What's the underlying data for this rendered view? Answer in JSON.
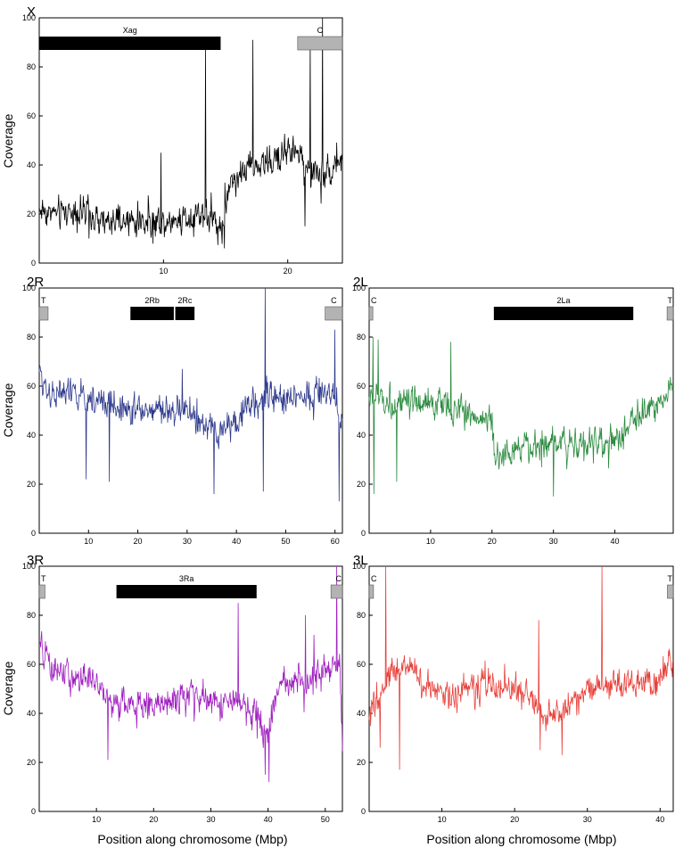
{
  "figure": {
    "y_axis_label": "Coverage",
    "x_axis_label": "Position along chromosome (Mbp)"
  },
  "chart_data": [
    {
      "id": "X",
      "panel_label": "X",
      "type": "line",
      "color": "#000000",
      "xlim": [
        0,
        24.4
      ],
      "ylim": [
        0,
        100
      ],
      "xticks": [
        10,
        20
      ],
      "yticks": [
        0,
        20,
        40,
        60,
        80,
        100
      ],
      "regions": [
        {
          "label": "Xag",
          "start": 0.0,
          "end": 14.6,
          "style": "inversion"
        },
        {
          "label": "C",
          "start": 20.8,
          "end": 24.4,
          "style": "centromere"
        }
      ],
      "spikes": [
        [
          9.8,
          45
        ],
        [
          13.4,
          88
        ],
        [
          17.2,
          91
        ],
        [
          21.8,
          90
        ],
        [
          22.8,
          100
        ]
      ],
      "dips": [
        [
          4.0,
          10
        ],
        [
          14.9,
          6
        ],
        [
          21.4,
          15
        ]
      ],
      "anchors": [
        [
          0.0,
          22
        ],
        [
          1.5,
          20
        ],
        [
          3.0,
          22
        ],
        [
          5.0,
          16
        ],
        [
          8.0,
          17
        ],
        [
          10.0,
          17
        ],
        [
          12.0,
          19
        ],
        [
          13.0,
          21
        ],
        [
          14.0,
          18
        ],
        [
          14.7,
          14
        ],
        [
          15.3,
          33
        ],
        [
          16.0,
          36
        ],
        [
          17.0,
          39
        ],
        [
          18.0,
          40
        ],
        [
          19.0,
          42
        ],
        [
          20.0,
          47
        ],
        [
          20.8,
          45
        ],
        [
          21.5,
          38
        ],
        [
          22.5,
          36
        ],
        [
          23.5,
          38
        ],
        [
          24.4,
          44
        ]
      ],
      "noise": 4.5
    },
    {
      "id": "2R",
      "panel_label": "2R",
      "type": "line",
      "color": "#2e3a8c",
      "xlim": [
        0,
        61.5
      ],
      "ylim": [
        0,
        100
      ],
      "xticks": [
        10,
        20,
        30,
        40,
        50,
        60
      ],
      "yticks": [
        0,
        20,
        40,
        60,
        80,
        100
      ],
      "regions": [
        {
          "label": "T",
          "start": 0.0,
          "end": 1.8,
          "style": "centromere"
        },
        {
          "label": "2Rb",
          "start": 18.5,
          "end": 27.3,
          "style": "inversion"
        },
        {
          "label": "2Rc",
          "start": 27.6,
          "end": 31.5,
          "style": "inversion"
        },
        {
          "label": "C",
          "start": 58.0,
          "end": 61.5,
          "style": "centromere"
        }
      ],
      "spikes": [
        [
          45.8,
          100
        ],
        [
          60.0,
          83
        ],
        [
          29.0,
          67
        ]
      ],
      "dips": [
        [
          9.5,
          22
        ],
        [
          14.2,
          21
        ],
        [
          35.5,
          16
        ],
        [
          45.5,
          17
        ],
        [
          60.8,
          13
        ]
      ],
      "anchors": [
        [
          0.0,
          65
        ],
        [
          2.0,
          58
        ],
        [
          10.0,
          55
        ],
        [
          20.0,
          50
        ],
        [
          30.0,
          50
        ],
        [
          33.0,
          44
        ],
        [
          36.0,
          40
        ],
        [
          40.0,
          47
        ],
        [
          45.0,
          55
        ],
        [
          50.0,
          55
        ],
        [
          55.0,
          57
        ],
        [
          59.0,
          58
        ],
        [
          61.5,
          45
        ]
      ],
      "noise": 4.5
    },
    {
      "id": "2L",
      "panel_label": "2L",
      "type": "line",
      "color": "#2a8a3e",
      "xlim": [
        0,
        49.5
      ],
      "ylim": [
        0,
        100
      ],
      "xticks": [
        10,
        20,
        30,
        40
      ],
      "yticks": [
        0,
        20,
        40,
        60,
        80,
        100
      ],
      "regions": [
        {
          "label": "C",
          "start": 0.0,
          "end": 0.6,
          "style": "centromere"
        },
        {
          "label": "2La",
          "start": 20.3,
          "end": 43.0,
          "style": "inversion"
        },
        {
          "label": "T",
          "start": 48.5,
          "end": 49.5,
          "style": "centromere"
        }
      ],
      "spikes": [
        [
          0.6,
          80
        ],
        [
          13.3,
          78
        ],
        [
          1.5,
          79
        ]
      ],
      "dips": [
        [
          0.8,
          16
        ],
        [
          4.5,
          21
        ],
        [
          30.0,
          15
        ]
      ],
      "anchors": [
        [
          0.0,
          55
        ],
        [
          2.0,
          55
        ],
        [
          5.0,
          52
        ],
        [
          10.0,
          53
        ],
        [
          15.0,
          50
        ],
        [
          20.0,
          46
        ],
        [
          20.4,
          30
        ],
        [
          25.0,
          35
        ],
        [
          30.0,
          38
        ],
        [
          35.0,
          37
        ],
        [
          40.0,
          36
        ],
        [
          43.0,
          46
        ],
        [
          47.0,
          54
        ],
        [
          49.5,
          60
        ]
      ],
      "noise": 4.5
    },
    {
      "id": "3R",
      "panel_label": "3R",
      "type": "line",
      "color": "#a020c0",
      "xlim": [
        0,
        53.0
      ],
      "ylim": [
        0,
        100
      ],
      "xticks": [
        10,
        20,
        30,
        40,
        50
      ],
      "yticks": [
        0,
        20,
        40,
        60,
        80,
        100
      ],
      "regions": [
        {
          "label": "T",
          "start": 0.0,
          "end": 1.0,
          "style": "centromere"
        },
        {
          "label": "3Ra",
          "start": 13.5,
          "end": 38.0,
          "style": "inversion"
        },
        {
          "label": "C",
          "start": 51.0,
          "end": 53.0,
          "style": "centromere"
        }
      ],
      "spikes": [
        [
          34.8,
          85
        ],
        [
          46.5,
          80
        ],
        [
          52.0,
          100
        ],
        [
          48.0,
          72
        ]
      ],
      "dips": [
        [
          12.0,
          21
        ],
        [
          40.2,
          12
        ],
        [
          39.5,
          15
        ]
      ],
      "anchors": [
        [
          0.0,
          68
        ],
        [
          2.0,
          58
        ],
        [
          10.0,
          52
        ],
        [
          13.0,
          44
        ],
        [
          20.0,
          43
        ],
        [
          25.0,
          47
        ],
        [
          30.0,
          45
        ],
        [
          35.0,
          44
        ],
        [
          38.0,
          38
        ],
        [
          40.0,
          30
        ],
        [
          42.0,
          52
        ],
        [
          50.0,
          55
        ],
        [
          52.5,
          60
        ],
        [
          53.0,
          30
        ]
      ],
      "noise": 4.5
    },
    {
      "id": "3L",
      "panel_label": "3L",
      "type": "line",
      "color": "#e8403a",
      "xlim": [
        0,
        41.8
      ],
      "ylim": [
        0,
        100
      ],
      "xticks": [
        10,
        20,
        30,
        40
      ],
      "yticks": [
        0,
        20,
        40,
        60,
        80,
        100
      ],
      "regions": [
        {
          "label": "C",
          "start": 0.0,
          "end": 0.6,
          "style": "centromere"
        },
        {
          "label": "T",
          "start": 41.0,
          "end": 41.8,
          "style": "centromere"
        }
      ],
      "spikes": [
        [
          2.3,
          100
        ],
        [
          32.0,
          100
        ],
        [
          23.3,
          78
        ]
      ],
      "dips": [
        [
          4.2,
          17
        ],
        [
          1.5,
          26
        ],
        [
          23.5,
          25
        ],
        [
          26.5,
          23
        ]
      ],
      "anchors": [
        [
          0.0,
          40
        ],
        [
          1.5,
          45
        ],
        [
          3.0,
          58
        ],
        [
          6.0,
          60
        ],
        [
          8.0,
          48
        ],
        [
          12.0,
          48
        ],
        [
          16.0,
          52
        ],
        [
          20.0,
          50
        ],
        [
          22.0,
          48
        ],
        [
          24.0,
          38
        ],
        [
          26.0,
          40
        ],
        [
          30.0,
          50
        ],
        [
          35.0,
          52
        ],
        [
          40.0,
          54
        ],
        [
          41.8,
          62
        ]
      ],
      "noise": 4.5
    }
  ]
}
